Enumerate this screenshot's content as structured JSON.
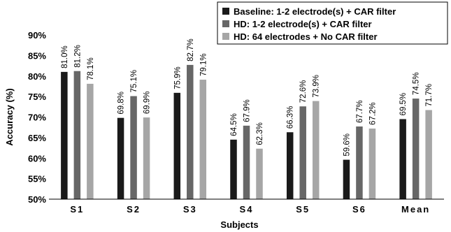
{
  "chart_data": {
    "type": "bar",
    "xlabel": "Subjects",
    "ylabel": "Accuracy (%)",
    "ylim": [
      50,
      90
    ],
    "yticks": [
      "50%",
      "55%",
      "60%",
      "65%",
      "70%",
      "75%",
      "80%",
      "85%",
      "90%"
    ],
    "categories": [
      "S1",
      "S2",
      "S3",
      "S4",
      "S5",
      "S6",
      "Mean"
    ],
    "legend_position": "top-right",
    "grid": false,
    "series": [
      {
        "name": "Baseline: 1-2 electrode(s) + CAR filter",
        "color": "#1a1a1a",
        "values": [
          81.0,
          69.8,
          75.9,
          64.5,
          66.3,
          59.6,
          69.5
        ],
        "labels": [
          "81.0%",
          "69.8%",
          "75.9%",
          "64.5%",
          "66.3%",
          "59.6%",
          "69.5%"
        ]
      },
      {
        "name": "HD: 1-2 electrode(s) + CAR filter",
        "color": "#676767",
        "values": [
          81.2,
          75.1,
          82.7,
          67.9,
          72.6,
          67.7,
          74.5
        ],
        "labels": [
          "81.2%",
          "75.1%",
          "82.7%",
          "67.9%",
          "72.6%",
          "67.7%",
          "74.5%"
        ]
      },
      {
        "name": "HD: 64 electrodes + No CAR filter",
        "color": "#a6a6a6",
        "values": [
          78.1,
          69.9,
          79.1,
          62.3,
          73.9,
          67.2,
          71.7
        ],
        "labels": [
          "78.1%",
          "69.9%",
          "79.1%",
          "62.3%",
          "73.9%",
          "67.2%",
          "71.7%"
        ]
      }
    ]
  }
}
